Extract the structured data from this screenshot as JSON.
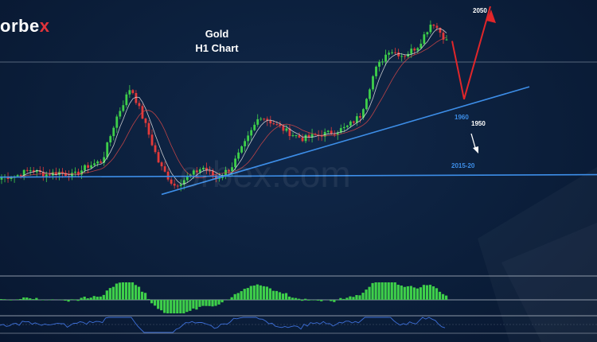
{
  "brand": {
    "text_main": "orbe",
    "text_accent": "x",
    "watermark": "orbex.com",
    "accent_color": "#e0343b"
  },
  "chart_title": {
    "line1": "Gold",
    "line2": "H1 Chart"
  },
  "annotations": {
    "target": "2050",
    "support_trend": "1960",
    "next_level": "1950",
    "long_trend": "2015-20"
  },
  "colors": {
    "background": "#0b1e3a",
    "candle_up": "#3ecf4a",
    "candle_down": "#e23a3a",
    "trendline": "#3d8ee8",
    "forecast_arrow": "#e0262a",
    "histogram": "#3ecf4a",
    "oscillator": "#3d6fd8"
  },
  "chart_data": {
    "type": "line",
    "symbol": "Gold",
    "timeframe": "H1",
    "price_path": [
      {
        "i": 0,
        "close": 1912
      },
      {
        "i": 1,
        "close": 1913
      },
      {
        "i": 2,
        "close": 1918
      },
      {
        "i": 3,
        "close": 1914
      },
      {
        "i": 4,
        "close": 1916
      },
      {
        "i": 5,
        "close": 1913
      },
      {
        "i": 6,
        "close": 1921
      },
      {
        "i": 7,
        "close": 1925
      },
      {
        "i": 8,
        "close": 1960
      },
      {
        "i": 9,
        "close": 1985
      },
      {
        "i": 10,
        "close": 1955
      },
      {
        "i": 11,
        "close": 1922
      },
      {
        "i": 12,
        "close": 1905
      },
      {
        "i": 13,
        "close": 1912
      },
      {
        "i": 14,
        "close": 1920
      },
      {
        "i": 15,
        "close": 1911
      },
      {
        "i": 16,
        "close": 1920
      },
      {
        "i": 17,
        "close": 1940
      },
      {
        "i": 18,
        "close": 1962
      },
      {
        "i": 19,
        "close": 1955
      },
      {
        "i": 20,
        "close": 1948
      },
      {
        "i": 21,
        "close": 1943
      },
      {
        "i": 22,
        "close": 1946
      },
      {
        "i": 23,
        "close": 1948
      },
      {
        "i": 24,
        "close": 1952
      },
      {
        "i": 25,
        "close": 1962
      },
      {
        "i": 26,
        "close": 1998
      },
      {
        "i": 27,
        "close": 2015
      },
      {
        "i": 28,
        "close": 2010
      },
      {
        "i": 29,
        "close": 2018
      },
      {
        "i": 30,
        "close": 2038
      },
      {
        "i": 31,
        "close": 2022
      }
    ],
    "forecast_path": [
      {
        "close": 2022
      },
      {
        "close": 1975
      },
      {
        "close": 2050
      }
    ],
    "levels": [
      {
        "label": "2050",
        "price": 2050
      },
      {
        "label": "1960",
        "price": 1960
      },
      {
        "label": "1950",
        "price": 1950
      },
      {
        "label": "2015-20",
        "price": 2017
      }
    ]
  }
}
